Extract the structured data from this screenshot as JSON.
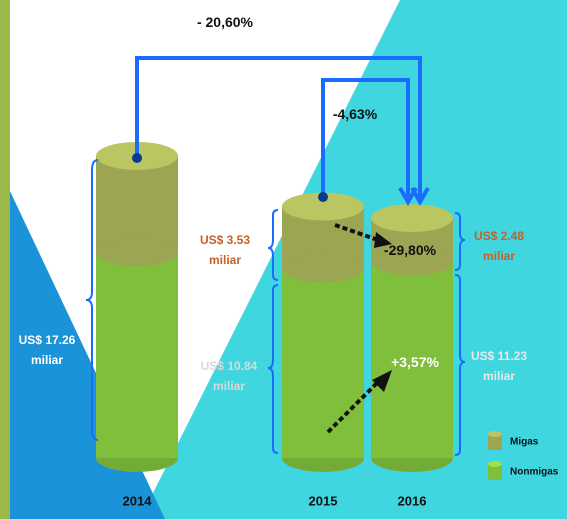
{
  "chart_data": {
    "type": "stacked-cylinder",
    "categories": [
      "2014",
      "2015",
      "2016"
    ],
    "series": [
      {
        "name": "Migas",
        "color": "#9ba552",
        "values": [
          5.5,
          3.53,
          2.48
        ],
        "value_labels": [
          null,
          "US$ 3.53 miliar",
          "US$ 2.48 miliar"
        ]
      },
      {
        "name": "Nonmigas",
        "color": "#7fbf3c",
        "values": [
          11.76,
          10.84,
          11.23
        ],
        "value_labels": [
          null,
          "US$ 10.84 miliar",
          "US$ 11.23 miliar"
        ]
      }
    ],
    "annotations": [
      "US$ 17.26 miliar",
      "- 20,60%",
      "-4,63%",
      "-29,80%",
      "+3,57%"
    ]
  }
}
